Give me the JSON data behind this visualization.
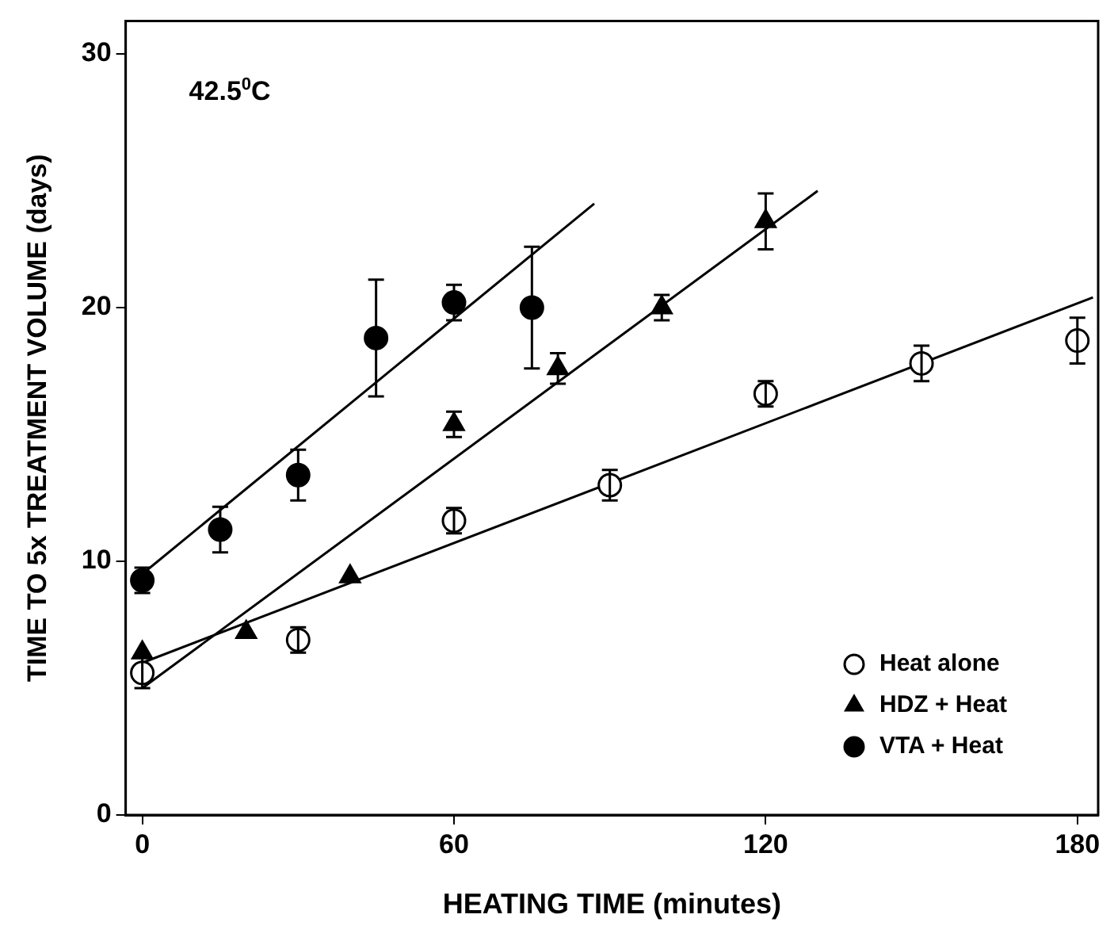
{
  "chart_data": {
    "type": "scatter",
    "xlabel": "HEATING TIME (minutes)",
    "ylabel": "TIME TO 5x TREATMENT VOLUME (days)",
    "annotations": [
      "42.5$^{0}$C"
    ],
    "xlim": [
      -3.2,
      184
    ],
    "ylim": [
      0,
      31.3
    ],
    "xticks": [
      0,
      60,
      120,
      180
    ],
    "yticks": [
      0,
      10,
      20,
      30
    ],
    "grid": false,
    "legend": "bottom right",
    "series": [
      {
        "name": "Heat alone",
        "marker": "circle",
        "color": "#ffffff",
        "x": [
          0,
          30,
          60,
          90,
          120,
          150,
          180
        ],
        "values": [
          5.6,
          6.9,
          11.6,
          13,
          16.6,
          17.8,
          18.7
        ],
        "errors": [
          0.6,
          0.5,
          0.5,
          0.6,
          0.5,
          0.7,
          0.9
        ]
      },
      {
        "name": "HDZ + Heat",
        "marker": "triangle",
        "color": "#000000",
        "x": [
          0,
          20,
          40,
          60,
          80,
          100,
          120
        ],
        "values": [
          6.4,
          7.2,
          9.4,
          15.4,
          17.6,
          20,
          23.4
        ],
        "errors": [
          null,
          null,
          null,
          0.5,
          0.6,
          0.5,
          1.1
        ]
      },
      {
        "name": "VTA + Heat",
        "marker": "circle",
        "color": "#000000",
        "x": [
          0,
          15,
          30,
          45,
          60,
          75
        ],
        "values": [
          9.25,
          11.25,
          13.4,
          18.8,
          20.2,
          20
        ],
        "errors": [
          0.5,
          0.9,
          1,
          2.3,
          0.7,
          2.4
        ]
      },
      {
        "type": "line",
        "color": "#000000",
        "x": [
          0,
          183
        ],
        "values": [
          6,
          20.4
        ]
      },
      {
        "type": "line",
        "color": "#000000",
        "x": [
          0,
          130
        ],
        "values": [
          5,
          24.6
        ]
      },
      {
        "type": "line",
        "color": "#000000",
        "x": [
          0,
          87
        ],
        "values": [
          9.5,
          24.1
        ]
      }
    ]
  }
}
